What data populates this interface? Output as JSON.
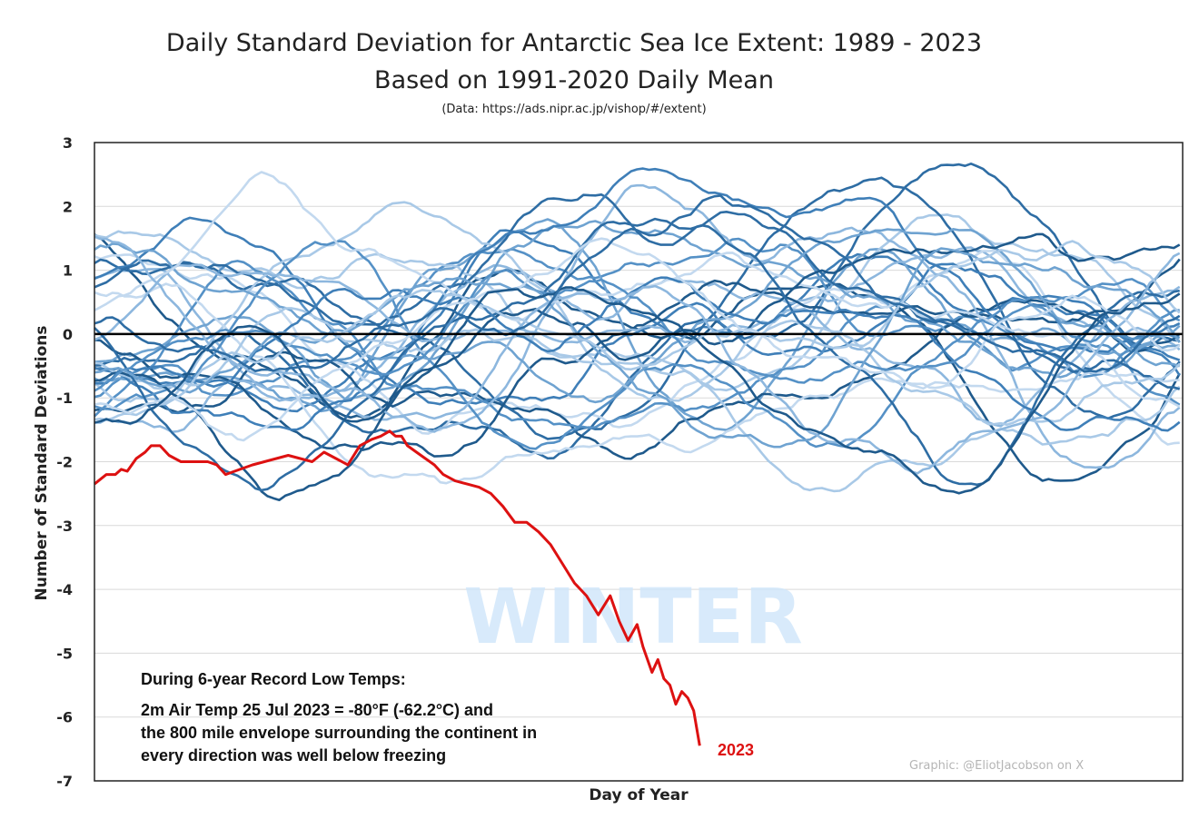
{
  "header": {
    "title": "Daily Standard Deviation for Antarctic Sea Ice Extent: 1989 - 2023",
    "subtitle": "Based on 1991-2020 Daily Mean",
    "source": "(Data: https://ads.nipr.ac.jp/vishop/#/extent)"
  },
  "annotations": {
    "watermark": "WINTER",
    "note_heading": "During 6-year Record Low Temps:",
    "note_line1": "2m Air Temp 25 Jul 2023 = -80°F (-62.2°C) and",
    "note_line2": "the 800 mile envelope surrounding the continent in",
    "note_line3": "every direction was well below freezing",
    "series_label": "2023",
    "credit": "Graphic: @EliotJacobson on X"
  },
  "colors": {
    "highlight": "#dd1111",
    "historical_palette": [
      "#1f5a8c",
      "#2e6da4",
      "#3f7fb8",
      "#5591c6",
      "#6fa3d1",
      "#8db7de",
      "#a9c9e7",
      "#c3d9ef"
    ],
    "zero_line": "#000000",
    "grid": "#d9d9d9"
  },
  "chart_data": {
    "type": "line",
    "title": "Daily Standard Deviation for Antarctic Sea Ice Extent: 1989 - 2023",
    "subtitle": "Based on 1991-2020 Daily Mean",
    "xlabel": "Day of Year",
    "ylabel": "Number of Standard Deviations",
    "xlim": [
      1,
      366
    ],
    "ylim": [
      -7,
      3
    ],
    "yticks": [
      "3",
      "2",
      "1",
      "0",
      "-1",
      "-2",
      "-3",
      "-4",
      "-5",
      "-6",
      "-7"
    ],
    "grid": "horizontal",
    "zero_line": true,
    "historical_years": "1989-2022",
    "historical_series_count": 34,
    "highlight_series": {
      "name": "2023",
      "x": [
        1,
        5,
        8,
        10,
        12,
        15,
        18,
        20,
        23,
        26,
        28,
        30,
        33,
        36,
        39,
        42,
        45,
        48,
        51,
        54,
        58,
        62,
        66,
        70,
        74,
        78,
        82,
        86,
        90,
        94,
        97,
        100,
        102,
        104,
        106,
        109,
        112,
        115,
        118,
        122,
        126,
        130,
        134,
        138,
        142,
        146,
        150,
        154,
        158,
        162,
        166,
        170,
        174,
        177,
        180,
        183,
        185,
        188,
        190,
        192,
        194,
        196,
        198,
        200,
        202,
        204
      ],
      "values": [
        -2.35,
        -2.2,
        -2.2,
        -2.12,
        -2.15,
        -1.95,
        -1.85,
        -1.75,
        -1.75,
        -1.9,
        -1.95,
        -2.0,
        -2.0,
        -2.0,
        -2.0,
        -2.05,
        -2.2,
        -2.15,
        -2.1,
        -2.05,
        -2.0,
        -1.95,
        -1.9,
        -1.95,
        -2.0,
        -1.85,
        -1.95,
        -2.05,
        -1.75,
        -1.65,
        -1.6,
        -1.52,
        -1.6,
        -1.6,
        -1.75,
        -1.85,
        -1.95,
        -2.05,
        -2.2,
        -2.3,
        -2.35,
        -2.4,
        -2.5,
        -2.7,
        -2.95,
        -2.95,
        -3.1,
        -3.3,
        -3.6,
        -3.9,
        -4.1,
        -4.4,
        -4.1,
        -4.5,
        -4.8,
        -4.55,
        -4.9,
        -5.3,
        -5.1,
        -5.4,
        -5.5,
        -5.8,
        -5.6,
        -5.7,
        -5.9,
        -6.45
      ]
    }
  }
}
